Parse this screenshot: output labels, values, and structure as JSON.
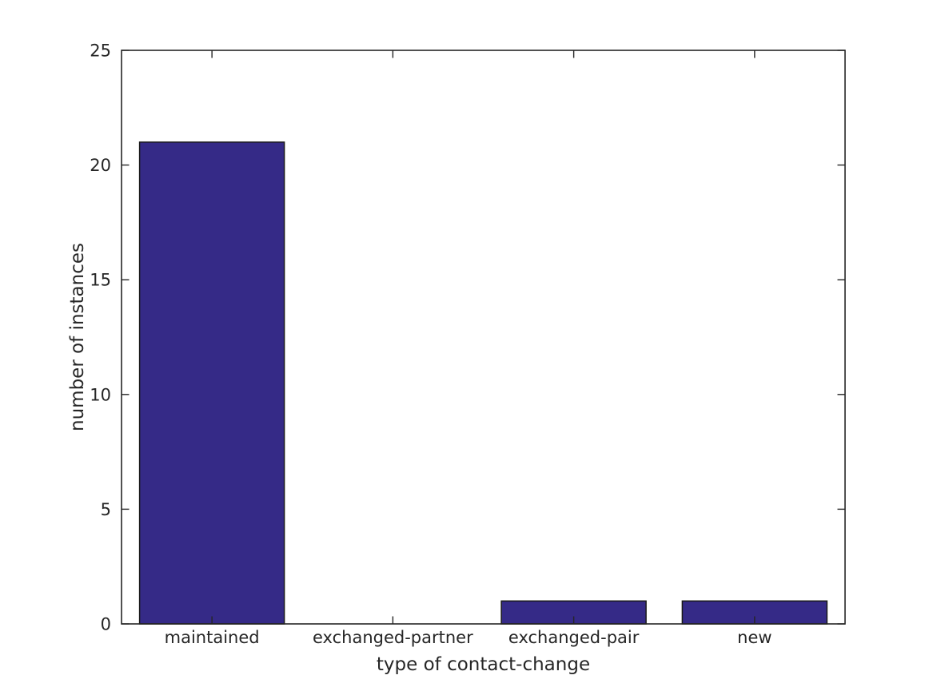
{
  "chart_data": {
    "type": "bar",
    "categories": [
      "maintained",
      "exchanged-partner",
      "exchanged-pair",
      "new"
    ],
    "values": [
      21,
      0,
      1,
      1
    ],
    "title": "",
    "xlabel": "type of contact-change",
    "ylabel": "number of instances",
    "ylim": [
      0,
      25
    ],
    "yticks": [
      0,
      5,
      10,
      15,
      20,
      25
    ],
    "grid": false,
    "legend": null,
    "bar_color": "#352A87",
    "bar_edge_color": "#1a1a1a",
    "axis_color": "#262626",
    "text_color": "#262626",
    "background_color": "#ffffff"
  }
}
